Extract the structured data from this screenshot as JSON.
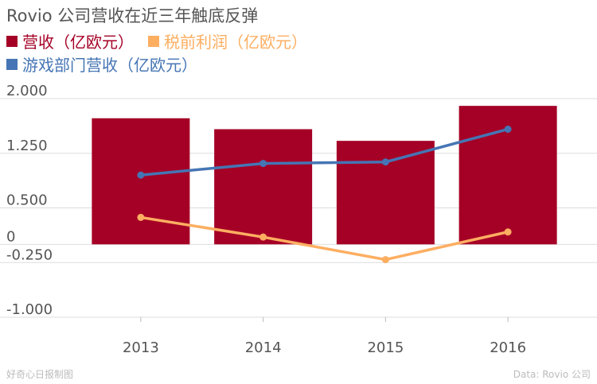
{
  "chart_data": {
    "type": "bar",
    "title": "Rovio 公司营收在近三年触底反弹",
    "categories": [
      "2013",
      "2014",
      "2015",
      "2016"
    ],
    "series": [
      {
        "name": "营收（亿欧元）",
        "type": "bar",
        "color": "#a50026",
        "values": [
          1.73,
          1.58,
          1.42,
          1.9
        ]
      },
      {
        "name": "税前利润（亿欧元）",
        "type": "line",
        "color": "#fdae61",
        "values": [
          0.37,
          0.1,
          -0.21,
          0.17
        ]
      },
      {
        "name": "游戏部门营收（亿欧元）",
        "type": "line",
        "color": "#4575b4",
        "values": [
          0.95,
          1.11,
          1.13,
          1.58
        ]
      }
    ],
    "yticks": [
      "2.000",
      "1.250",
      "0.500",
      "0",
      "-0.250",
      "-1.000"
    ],
    "ytick_values": [
      2,
      1.25,
      0.5,
      0,
      -0.25,
      -1
    ],
    "ylim": [
      -1.0,
      2.0
    ],
    "grid": true
  },
  "footer": {
    "source_left": "好奇心日报制图",
    "source_right": "Data: Rovio 公司"
  }
}
